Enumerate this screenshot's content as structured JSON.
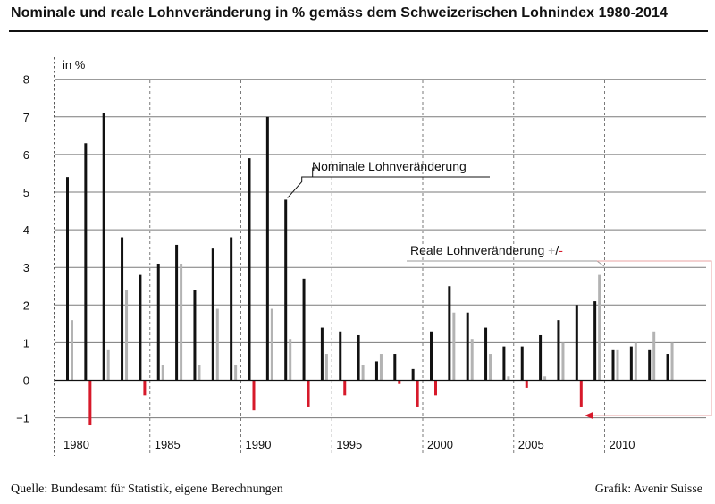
{
  "title": "Nominale und reale Lohnveränderung in % gemäss dem Schweizerischen Lohnindex 1980-2014",
  "source": "Quelle: Bundesamt für Statistik, eigene Berechnungen",
  "credit": "Grafik: Avenir Suisse",
  "colors": {
    "nominal": "#111111",
    "real_positive": "#b3b3b3",
    "real_negative": "#d7192a",
    "grid": "#7a7a7a",
    "callout": "#e8a3a3"
  },
  "chart_data": {
    "type": "bar",
    "title": "Nominale und reale Lohnveränderung in % gemäss dem Schweizerischen Lohnindex 1980-2014",
    "ylabel": "in %",
    "xlabel": "",
    "ylim": [
      -1.2,
      8
    ],
    "yticks": [
      -1,
      0,
      1,
      2,
      3,
      4,
      5,
      6,
      7,
      8
    ],
    "xticks": [
      1980,
      1985,
      1990,
      1995,
      2000,
      2005,
      2010
    ],
    "grid": true,
    "categories": [
      1980,
      1981,
      1982,
      1983,
      1984,
      1985,
      1986,
      1987,
      1988,
      1989,
      1990,
      1991,
      1992,
      1993,
      1994,
      1995,
      1996,
      1997,
      1998,
      1999,
      2000,
      2001,
      2002,
      2003,
      2004,
      2005,
      2006,
      2007,
      2008,
      2009,
      2010,
      2011,
      2012,
      2013
    ],
    "series": [
      {
        "name": "Nominale Lohnveränderung",
        "values": [
          5.4,
          6.3,
          7.1,
          3.8,
          2.8,
          3.1,
          3.6,
          2.4,
          3.5,
          3.8,
          5.9,
          7.0,
          4.8,
          2.7,
          1.4,
          1.3,
          1.2,
          0.5,
          0.7,
          0.3,
          1.3,
          2.5,
          1.8,
          1.4,
          0.9,
          0.9,
          1.2,
          1.6,
          2.0,
          2.1,
          0.8,
          0.9,
          0.8,
          0.7
        ]
      },
      {
        "name": "Reale Lohnveränderung +/-",
        "values": [
          1.6,
          -1.2,
          0.8,
          2.4,
          -0.4,
          0.4,
          3.1,
          0.4,
          1.9,
          0.4,
          -0.8,
          1.9,
          1.1,
          -0.7,
          0.7,
          -0.4,
          0.4,
          0.7,
          -0.1,
          -0.7,
          -0.4,
          1.8,
          1.1,
          0.7,
          0.1,
          -0.2,
          0.1,
          1.0,
          -0.7,
          2.8,
          0.8,
          1.0,
          1.3,
          1.0
        ]
      }
    ],
    "annotations": {
      "nominal_label": "Nominale Lohnveränderung",
      "real_label_text": "Reale Lohnveränderung ",
      "real_label_plus": "+",
      "real_label_slash": "/",
      "real_label_minus": "-"
    }
  }
}
